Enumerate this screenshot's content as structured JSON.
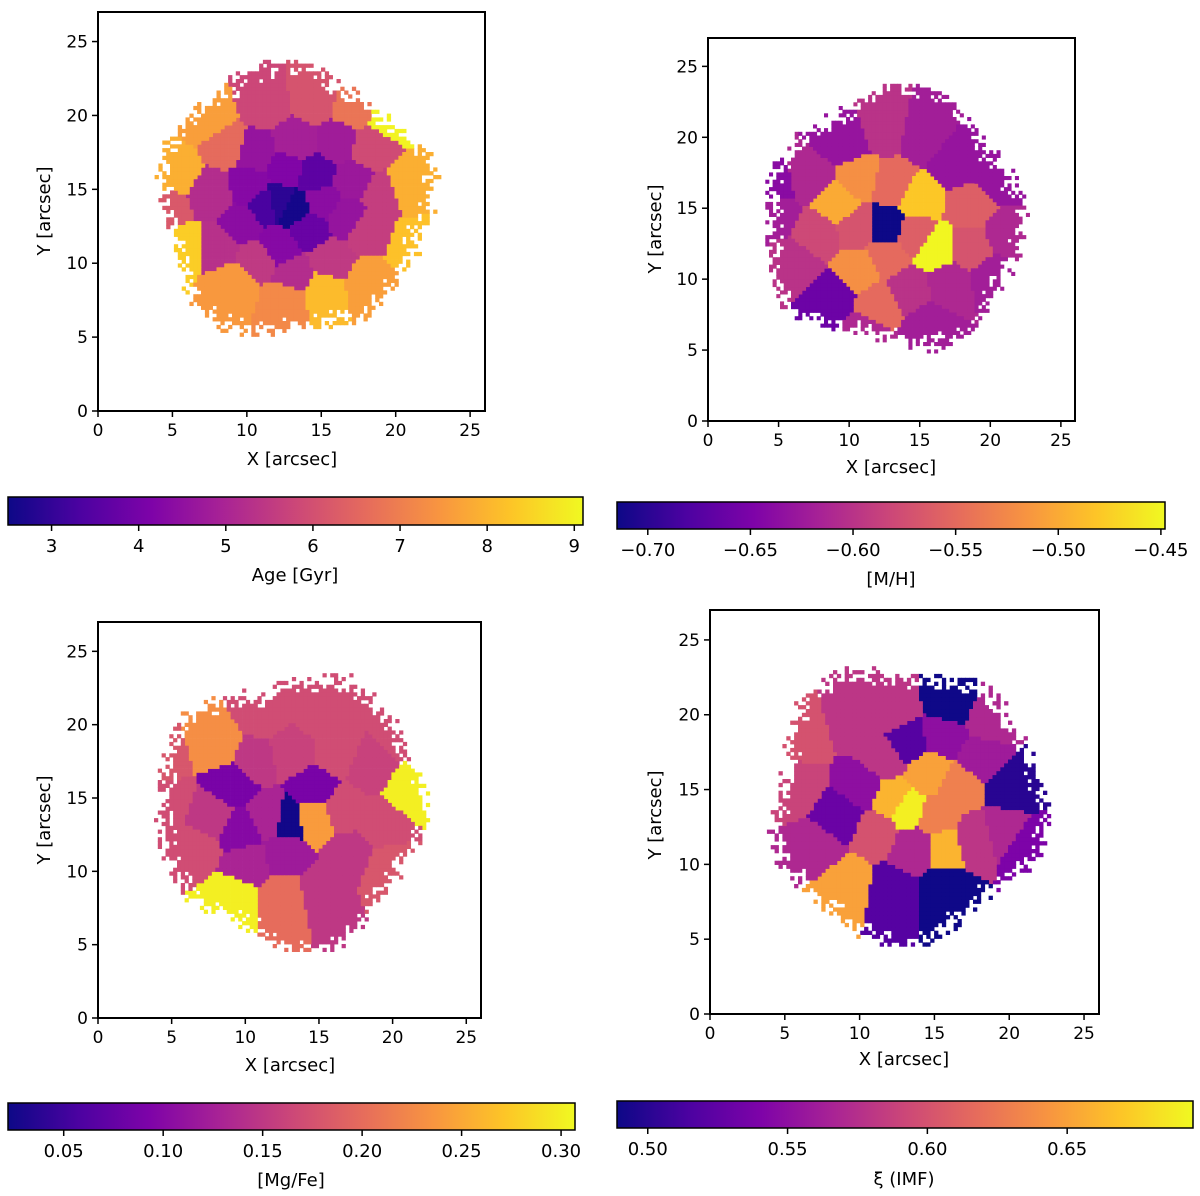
{
  "chart_data": [
    {
      "type": "heatmap",
      "panel": "top-left",
      "xlabel": "X [arcsec]",
      "ylabel": "Y [arcsec]",
      "xlim": [
        0,
        26
      ],
      "ylim": [
        0,
        27
      ],
      "xticks": [
        0,
        5,
        10,
        15,
        20,
        25
      ],
      "yticks": [
        0,
        5,
        10,
        15,
        20,
        25
      ],
      "colorbar": {
        "label": "Age [Gyr]",
        "range": [
          2.5,
          9.1
        ],
        "ticks": [
          3,
          4,
          5,
          6,
          7,
          8,
          9
        ],
        "tick_labels": [
          "3",
          "4",
          "5",
          "6",
          "7",
          "8",
          "9"
        ],
        "colormap": "plasma"
      },
      "cells": [
        [
          13.0,
          13.5,
          2.6
        ],
        [
          12.0,
          14.0,
          2.9
        ],
        [
          11.0,
          13.8,
          3.3
        ],
        [
          14.5,
          15.8,
          3.6
        ],
        [
          12.5,
          16.3,
          4.2
        ],
        [
          10.0,
          15.0,
          4.3
        ],
        [
          9.5,
          12.5,
          4.4
        ],
        [
          12.0,
          11.0,
          4.3
        ],
        [
          14.0,
          12.2,
          3.8
        ],
        [
          15.0,
          14.0,
          4.4
        ],
        [
          16.5,
          13.0,
          4.6
        ],
        [
          17.0,
          15.5,
          4.7
        ],
        [
          10.5,
          17.5,
          4.6
        ],
        [
          13.0,
          18.0,
          4.9
        ],
        [
          16.0,
          18.0,
          4.8
        ],
        [
          7.5,
          14.5,
          5.2
        ],
        [
          8.0,
          11.0,
          5.3
        ],
        [
          10.5,
          10.0,
          5.5
        ],
        [
          13.0,
          9.0,
          5.2
        ],
        [
          15.5,
          10.0,
          5.5
        ],
        [
          18.0,
          12.0,
          5.6
        ],
        [
          19.0,
          14.5,
          5.6
        ],
        [
          18.0,
          17.5,
          5.9
        ],
        [
          8.5,
          18.0,
          6.6
        ],
        [
          11.0,
          20.5,
          5.8
        ],
        [
          14.5,
          21.0,
          6.1
        ],
        [
          17.0,
          20.5,
          6.8
        ],
        [
          4.5,
          13.5,
          6.2
        ],
        [
          5.0,
          16.0,
          7.9
        ],
        [
          7.5,
          19.5,
          7.6
        ],
        [
          5.5,
          11.0,
          8.4
        ],
        [
          9.0,
          8.5,
          7.5
        ],
        [
          12.5,
          7.5,
          7.2
        ],
        [
          15.0,
          8.0,
          8.1
        ],
        [
          18.0,
          8.5,
          7.6
        ],
        [
          21.0,
          11.0,
          8.2
        ],
        [
          20.5,
          15.0,
          7.9
        ],
        [
          19.5,
          20.0,
          9.0
        ]
      ]
    },
    {
      "type": "heatmap",
      "panel": "top-right",
      "xlabel": "X [arcsec]",
      "ylabel": "Y [arcsec]",
      "xlim": [
        0,
        26
      ],
      "ylim": [
        0,
        27
      ],
      "xticks": [
        0,
        5,
        10,
        15,
        20,
        25
      ],
      "yticks": [
        0,
        5,
        10,
        15,
        20,
        25
      ],
      "colorbar": {
        "label": "[M/H]",
        "range": [
          -0.715,
          -0.448
        ],
        "ticks": [
          -0.7,
          -0.65,
          -0.6,
          -0.55,
          -0.5,
          -0.45
        ],
        "tick_labels": [
          "−0.70",
          "−0.65",
          "−0.60",
          "−0.55",
          "−0.50",
          "−0.45"
        ],
        "colormap": "plasma"
      },
      "cells": [
        [
          12.5,
          13.6,
          -0.715
        ],
        [
          10.5,
          13.5,
          -0.57
        ],
        [
          9.0,
          15.2,
          -0.5
        ],
        [
          10.5,
          17.0,
          -0.52
        ],
        [
          13.0,
          16.5,
          -0.55
        ],
        [
          14.8,
          15.5,
          -0.48
        ],
        [
          16.0,
          12.0,
          -0.45
        ],
        [
          14.5,
          13.0,
          -0.56
        ],
        [
          12.5,
          11.5,
          -0.55
        ],
        [
          10.5,
          10.5,
          -0.52
        ],
        [
          7.5,
          13.0,
          -0.58
        ],
        [
          7.0,
          17.0,
          -0.61
        ],
        [
          9.5,
          19.5,
          -0.63
        ],
        [
          12.5,
          20.5,
          -0.6
        ],
        [
          15.0,
          20.0,
          -0.62
        ],
        [
          17.5,
          18.0,
          -0.63
        ],
        [
          18.5,
          15.0,
          -0.56
        ],
        [
          18.5,
          12.0,
          -0.57
        ],
        [
          17.0,
          9.5,
          -0.61
        ],
        [
          14.0,
          9.0,
          -0.6
        ],
        [
          12.0,
          8.0,
          -0.55
        ],
        [
          8.5,
          8.5,
          -0.66
        ],
        [
          6.0,
          11.0,
          -0.6
        ],
        [
          4.5,
          14.5,
          -0.62
        ],
        [
          4.5,
          16.5,
          -0.64
        ],
        [
          20.5,
          17.0,
          -0.63
        ],
        [
          21.0,
          13.0,
          -0.61
        ],
        [
          20.0,
          10.0,
          -0.62
        ],
        [
          15.5,
          6.5,
          -0.62
        ],
        [
          11.0,
          6.0,
          -0.61
        ]
      ]
    },
    {
      "type": "heatmap",
      "panel": "bottom-left",
      "xlabel": "X [arcsec]",
      "ylabel": "Y [arcsec]",
      "xlim": [
        0,
        26
      ],
      "ylim": [
        0,
        27
      ],
      "xticks": [
        0,
        5,
        10,
        15,
        20,
        25
      ],
      "yticks": [
        0,
        5,
        10,
        15,
        20,
        25
      ],
      "colorbar": {
        "label": "[Mg/Fe]",
        "range": [
          0.022,
          0.307
        ],
        "ticks": [
          0.05,
          0.1,
          0.15,
          0.2,
          0.25,
          0.3
        ],
        "tick_labels": [
          "0.05",
          "0.10",
          "0.15",
          "0.20",
          "0.25",
          "0.30"
        ],
        "colormap": "plasma"
      },
      "cells": [
        [
          12.8,
          13.3,
          0.025
        ],
        [
          9.0,
          15.8,
          0.09
        ],
        [
          9.5,
          12.5,
          0.1
        ],
        [
          11.5,
          13.5,
          0.13
        ],
        [
          12.5,
          11.0,
          0.12
        ],
        [
          14.5,
          15.5,
          0.09
        ],
        [
          14.5,
          13.4,
          0.24
        ],
        [
          16.5,
          14.0,
          0.17
        ],
        [
          10.5,
          17.5,
          0.15
        ],
        [
          13.0,
          18.0,
          0.16
        ],
        [
          16.0,
          18.0,
          0.17
        ],
        [
          7.5,
          13.5,
          0.15
        ],
        [
          8.0,
          18.5,
          0.23
        ],
        [
          11.0,
          20.5,
          0.17
        ],
        [
          15.0,
          20.5,
          0.17
        ],
        [
          18.5,
          17.0,
          0.16
        ],
        [
          21.0,
          15.5,
          0.3
        ],
        [
          19.0,
          13.0,
          0.17
        ],
        [
          17.0,
          11.0,
          0.15
        ],
        [
          15.0,
          8.5,
          0.15
        ],
        [
          12.5,
          8.0,
          0.2
        ],
        [
          9.0,
          8.0,
          0.3
        ],
        [
          6.5,
          11.5,
          0.17
        ],
        [
          4.5,
          14.5,
          0.17
        ],
        [
          19.5,
          10.0,
          0.18
        ],
        [
          10.0,
          10.5,
          0.13
        ],
        [
          4.0,
          17.5,
          0.18
        ],
        [
          20.5,
          19.0,
          0.17
        ]
      ]
    },
    {
      "type": "heatmap",
      "panel": "bottom-right",
      "xlabel": "X [arcsec]",
      "ylabel": "Y [arcsec]",
      "xlim": [
        0,
        26
      ],
      "ylim": [
        0,
        27
      ],
      "xticks": [
        0,
        5,
        10,
        15,
        20,
        25
      ],
      "yticks": [
        0,
        5,
        10,
        15,
        20,
        25
      ],
      "colorbar": {
        "label": "ξ (IMF)",
        "range": [
          0.489,
          0.695
        ],
        "ticks": [
          0.5,
          0.55,
          0.6,
          0.65
        ],
        "tick_labels": [
          "0.50",
          "0.55",
          "0.60",
          "0.65"
        ],
        "colormap": "plasma"
      },
      "cells": [
        [
          13.0,
          13.5,
          0.69
        ],
        [
          12.0,
          14.2,
          0.66
        ],
        [
          15.0,
          13.0,
          0.63
        ],
        [
          15.5,
          11.0,
          0.66
        ],
        [
          14.5,
          16.0,
          0.65
        ],
        [
          16.5,
          15.0,
          0.63
        ],
        [
          11.0,
          12.0,
          0.6
        ],
        [
          10.0,
          15.0,
          0.55
        ],
        [
          8.5,
          13.0,
          0.53
        ],
        [
          11.5,
          17.0,
          0.58
        ],
        [
          13.0,
          18.0,
          0.52
        ],
        [
          15.5,
          18.5,
          0.55
        ],
        [
          16.0,
          20.5,
          0.49
        ],
        [
          18.0,
          17.0,
          0.56
        ],
        [
          20.0,
          15.0,
          0.5
        ],
        [
          19.5,
          12.0,
          0.57
        ],
        [
          21.0,
          11.0,
          0.54
        ],
        [
          17.5,
          11.5,
          0.58
        ],
        [
          15.5,
          8.0,
          0.49
        ],
        [
          12.0,
          8.0,
          0.52
        ],
        [
          9.0,
          8.5,
          0.65
        ],
        [
          7.0,
          11.0,
          0.57
        ],
        [
          5.5,
          15.0,
          0.59
        ],
        [
          6.0,
          18.5,
          0.6
        ],
        [
          9.5,
          19.5,
          0.58
        ],
        [
          12.0,
          20.0,
          0.58
        ],
        [
          18.5,
          19.5,
          0.57
        ],
        [
          13.5,
          11.0,
          0.57
        ]
      ]
    }
  ]
}
